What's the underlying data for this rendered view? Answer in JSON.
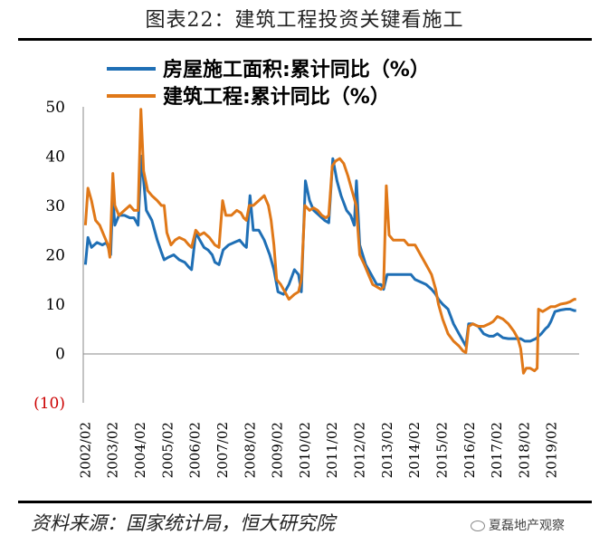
{
  "header": {
    "title": "图表22：建筑工程投资关键看施工"
  },
  "footer": {
    "source": "资料来源：国家统计局，恒大研究院",
    "watermark": "夏磊地产观察"
  },
  "chart_data": {
    "type": "line",
    "ylim": [
      -10,
      50
    ],
    "yticks": [
      "50",
      "40",
      "30",
      "20",
      "10",
      "0",
      "(10)"
    ],
    "ytick_values": [
      50,
      40,
      30,
      20,
      10,
      0,
      -10
    ],
    "xtick_labels": [
      "2002/02",
      "2003/02",
      "2004/02",
      "2005/02",
      "2006/02",
      "2007/02",
      "2008/02",
      "2009/02",
      "2010/02",
      "2011/02",
      "2012/02",
      "2013/02",
      "2014/02",
      "2015/02",
      "2016/02",
      "2017/02",
      "2018/02",
      "2019/02"
    ],
    "legend_position": "top",
    "grid": false,
    "colors": {
      "house": "#1f6fb5",
      "construction": "#e07818",
      "negative_tick": "#cc0000"
    },
    "series": [
      {
        "name": "房屋施工面积:累计同比（%）",
        "key": "house",
        "points": [
          [
            2002.08,
            18
          ],
          [
            2002.17,
            23.5
          ],
          [
            2002.3,
            21.5
          ],
          [
            2002.5,
            22.5
          ],
          [
            2002.7,
            22
          ],
          [
            2002.85,
            22.5
          ],
          [
            2003.0,
            20
          ],
          [
            2003.08,
            32
          ],
          [
            2003.15,
            26
          ],
          [
            2003.3,
            28
          ],
          [
            2003.5,
            28
          ],
          [
            2003.7,
            27.5
          ],
          [
            2003.85,
            27.5
          ],
          [
            2004.0,
            26
          ],
          [
            2004.12,
            40
          ],
          [
            2004.3,
            29
          ],
          [
            2004.5,
            27
          ],
          [
            2004.7,
            23
          ],
          [
            2004.85,
            20.5
          ],
          [
            2004.95,
            19
          ],
          [
            2005.1,
            19.5
          ],
          [
            2005.3,
            20
          ],
          [
            2005.5,
            19
          ],
          [
            2005.7,
            18.5
          ],
          [
            2005.85,
            17.5
          ],
          [
            2005.95,
            17
          ],
          [
            2006.1,
            24.5
          ],
          [
            2006.25,
            23
          ],
          [
            2006.4,
            21.5
          ],
          [
            2006.55,
            21
          ],
          [
            2006.7,
            20
          ],
          [
            2006.8,
            18.5
          ],
          [
            2006.95,
            18
          ],
          [
            2007.1,
            21
          ],
          [
            2007.3,
            22
          ],
          [
            2007.5,
            22.5
          ],
          [
            2007.7,
            23
          ],
          [
            2007.85,
            22
          ],
          [
            2007.95,
            21.5
          ],
          [
            2008.08,
            32
          ],
          [
            2008.2,
            25
          ],
          [
            2008.4,
            25
          ],
          [
            2008.6,
            23
          ],
          [
            2008.8,
            20
          ],
          [
            2008.95,
            17
          ],
          [
            2009.1,
            12.5
          ],
          [
            2009.3,
            12
          ],
          [
            2009.5,
            14
          ],
          [
            2009.7,
            17
          ],
          [
            2009.85,
            16
          ],
          [
            2009.95,
            12.5
          ],
          [
            2010.1,
            35
          ],
          [
            2010.25,
            31
          ],
          [
            2010.4,
            29
          ],
          [
            2010.6,
            28
          ],
          [
            2010.8,
            27
          ],
          [
            2010.95,
            26.5
          ],
          [
            2011.1,
            39.5
          ],
          [
            2011.25,
            35
          ],
          [
            2011.4,
            32
          ],
          [
            2011.6,
            29
          ],
          [
            2011.75,
            28
          ],
          [
            2011.88,
            26
          ],
          [
            2011.96,
            35
          ],
          [
            2012.08,
            22
          ],
          [
            2012.3,
            18
          ],
          [
            2012.5,
            16
          ],
          [
            2012.7,
            14
          ],
          [
            2012.85,
            14
          ],
          [
            2012.95,
            13
          ],
          [
            2013.08,
            16
          ],
          [
            2013.3,
            16
          ],
          [
            2013.5,
            16
          ],
          [
            2013.7,
            16
          ],
          [
            2013.85,
            16
          ],
          [
            2013.95,
            16
          ],
          [
            2014.1,
            15
          ],
          [
            2014.3,
            14.5
          ],
          [
            2014.5,
            14
          ],
          [
            2014.7,
            13
          ],
          [
            2014.85,
            12
          ],
          [
            2014.95,
            11
          ],
          [
            2015.1,
            10
          ],
          [
            2015.3,
            9
          ],
          [
            2015.5,
            6
          ],
          [
            2015.7,
            4
          ],
          [
            2015.85,
            2.5
          ],
          [
            2015.95,
            1.5
          ],
          [
            2016.05,
            6
          ],
          [
            2016.2,
            6
          ],
          [
            2016.4,
            5.5
          ],
          [
            2016.6,
            4
          ],
          [
            2016.8,
            3.5
          ],
          [
            2016.95,
            3.5
          ],
          [
            2017.1,
            4
          ],
          [
            2017.3,
            3.2
          ],
          [
            2017.5,
            3
          ],
          [
            2017.7,
            3
          ],
          [
            2017.85,
            3
          ],
          [
            2017.95,
            3
          ],
          [
            2018.1,
            2.5
          ],
          [
            2018.3,
            2.5
          ],
          [
            2018.5,
            3
          ],
          [
            2018.7,
            4
          ],
          [
            2018.85,
            5
          ],
          [
            2018.95,
            5.5
          ],
          [
            2019.05,
            6.5
          ],
          [
            2019.2,
            8.5
          ],
          [
            2019.4,
            8.8
          ],
          [
            2019.6,
            9
          ],
          [
            2019.75,
            9
          ],
          [
            2019.9,
            8.7
          ],
          [
            2019.97,
            8.7
          ]
        ]
      },
      {
        "name": "建筑工程:累计同比（%）",
        "key": "construction",
        "points": [
          [
            2002.08,
            26
          ],
          [
            2002.17,
            33.5
          ],
          [
            2002.3,
            31
          ],
          [
            2002.45,
            27
          ],
          [
            2002.6,
            26
          ],
          [
            2002.75,
            24
          ],
          [
            2002.9,
            22
          ],
          [
            2002.97,
            19.5
          ],
          [
            2003.08,
            36.5
          ],
          [
            2003.15,
            30
          ],
          [
            2003.3,
            28
          ],
          [
            2003.5,
            29
          ],
          [
            2003.7,
            30
          ],
          [
            2003.85,
            29
          ],
          [
            2004.0,
            29
          ],
          [
            2004.1,
            49.5
          ],
          [
            2004.2,
            37
          ],
          [
            2004.35,
            33
          ],
          [
            2004.5,
            32
          ],
          [
            2004.7,
            31
          ],
          [
            2004.85,
            30
          ],
          [
            2004.95,
            30
          ],
          [
            2005.05,
            24.5
          ],
          [
            2005.2,
            22
          ],
          [
            2005.35,
            23
          ],
          [
            2005.5,
            23.5
          ],
          [
            2005.7,
            23
          ],
          [
            2005.85,
            22
          ],
          [
            2005.95,
            21.5
          ],
          [
            2006.1,
            25
          ],
          [
            2006.25,
            24
          ],
          [
            2006.4,
            24.5
          ],
          [
            2006.6,
            23.5
          ],
          [
            2006.8,
            22
          ],
          [
            2006.95,
            21.5
          ],
          [
            2007.08,
            31
          ],
          [
            2007.2,
            28
          ],
          [
            2007.4,
            28
          ],
          [
            2007.6,
            29
          ],
          [
            2007.75,
            28.5
          ],
          [
            2007.85,
            27.5
          ],
          [
            2007.95,
            27
          ],
          [
            2008.05,
            30
          ],
          [
            2008.2,
            30
          ],
          [
            2008.4,
            31
          ],
          [
            2008.6,
            32
          ],
          [
            2008.75,
            30
          ],
          [
            2008.85,
            27
          ],
          [
            2008.95,
            22
          ],
          [
            2009.05,
            15
          ],
          [
            2009.2,
            14
          ],
          [
            2009.35,
            12.5
          ],
          [
            2009.5,
            11
          ],
          [
            2009.7,
            12
          ],
          [
            2009.85,
            12.5
          ],
          [
            2009.95,
            15
          ],
          [
            2010.08,
            30
          ],
          [
            2010.25,
            29
          ],
          [
            2010.4,
            29.5
          ],
          [
            2010.55,
            29
          ],
          [
            2010.7,
            28
          ],
          [
            2010.85,
            27.5
          ],
          [
            2010.95,
            28
          ],
          [
            2011.08,
            38
          ],
          [
            2011.2,
            39
          ],
          [
            2011.35,
            39.5
          ],
          [
            2011.5,
            38.5
          ],
          [
            2011.65,
            36
          ],
          [
            2011.8,
            33
          ],
          [
            2011.95,
            30
          ],
          [
            2012.08,
            20
          ],
          [
            2012.25,
            18
          ],
          [
            2012.4,
            16
          ],
          [
            2012.55,
            14
          ],
          [
            2012.7,
            13.5
          ],
          [
            2012.85,
            13
          ],
          [
            2012.95,
            13.5
          ],
          [
            2013.05,
            34
          ],
          [
            2013.15,
            24
          ],
          [
            2013.3,
            23
          ],
          [
            2013.5,
            23
          ],
          [
            2013.7,
            23
          ],
          [
            2013.85,
            22
          ],
          [
            2013.95,
            22
          ],
          [
            2014.1,
            22
          ],
          [
            2014.3,
            20
          ],
          [
            2014.5,
            18
          ],
          [
            2014.7,
            16
          ],
          [
            2014.85,
            13
          ],
          [
            2014.95,
            10
          ],
          [
            2015.1,
            7
          ],
          [
            2015.3,
            4
          ],
          [
            2015.5,
            2.5
          ],
          [
            2015.7,
            1.5
          ],
          [
            2015.85,
            0.5
          ],
          [
            2015.95,
            0.2
          ],
          [
            2016.05,
            5.5
          ],
          [
            2016.2,
            6
          ],
          [
            2016.4,
            5.5
          ],
          [
            2016.6,
            5.5
          ],
          [
            2016.8,
            6
          ],
          [
            2016.95,
            6.5
          ],
          [
            2017.1,
            7.5
          ],
          [
            2017.3,
            7
          ],
          [
            2017.5,
            6
          ],
          [
            2017.7,
            4.5
          ],
          [
            2017.85,
            3
          ],
          [
            2017.95,
            1
          ],
          [
            2018.05,
            -4
          ],
          [
            2018.15,
            -3
          ],
          [
            2018.3,
            -3
          ],
          [
            2018.45,
            -3.5
          ],
          [
            2018.55,
            -3
          ],
          [
            2018.6,
            9
          ],
          [
            2018.75,
            8.5
          ],
          [
            2018.9,
            9
          ],
          [
            2019.05,
            9.5
          ],
          [
            2019.2,
            9.5
          ],
          [
            2019.4,
            10
          ],
          [
            2019.6,
            10.2
          ],
          [
            2019.75,
            10.5
          ],
          [
            2019.9,
            11
          ],
          [
            2019.97,
            11
          ]
        ]
      }
    ]
  }
}
